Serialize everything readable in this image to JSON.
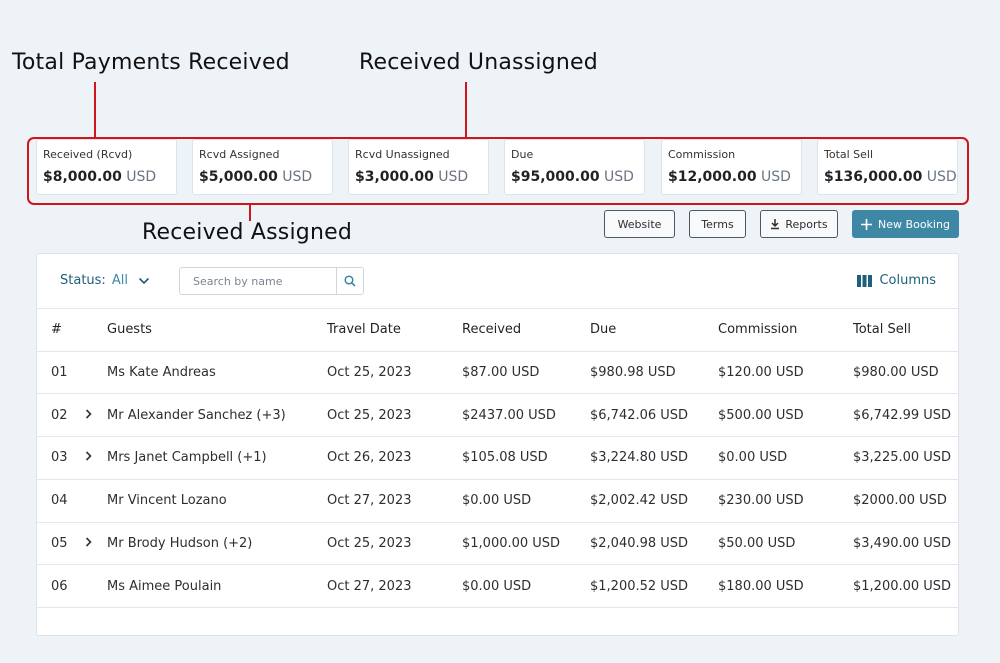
{
  "annotations": {
    "total_payments": "Total Payments Received",
    "received_unassigned": "Received Unassigned",
    "received_assigned": "Received Assigned"
  },
  "summary_cards": [
    {
      "label": "Received (Rcvd)",
      "amount": "$8,000.00",
      "currency": "USD"
    },
    {
      "label": "Rcvd Assigned",
      "amount": "$5,000.00",
      "currency": "USD"
    },
    {
      "label": "Rcvd Unassigned",
      "amount": "$3,000.00",
      "currency": "USD"
    },
    {
      "label": "Due",
      "amount": "$95,000.00",
      "currency": "USD"
    },
    {
      "label": "Commission",
      "amount": "$12,000.00",
      "currency": "USD"
    },
    {
      "label": "Total Sell",
      "amount": "$136,000.00",
      "currency": "USD"
    }
  ],
  "toolbar": {
    "website": "Website",
    "terms": "Terms",
    "reports": "Reports",
    "new_booking": "New Booking"
  },
  "filter": {
    "status_label": "Status:",
    "status_value": "All",
    "search_placeholder": "Search by name",
    "columns": "Columns"
  },
  "table": {
    "headers": [
      "#",
      "Guests",
      "Travel Date",
      "Received",
      "Due",
      "Commission",
      "Total Sell"
    ],
    "rows": [
      {
        "num": "01",
        "expandable": false,
        "guest": "Ms Kate Andreas",
        "date": "Oct 25, 2023",
        "received": "$87.00 USD",
        "due": "$980.98 USD",
        "commission": "$120.00 USD",
        "total": "$980.00 USD"
      },
      {
        "num": "02",
        "expandable": true,
        "guest": "Mr Alexander Sanchez (+3)",
        "date": "Oct 25, 2023",
        "received": "$2437.00 USD",
        "due": "$6,742.06 USD",
        "commission": "$500.00 USD",
        "total": "$6,742.99 USD"
      },
      {
        "num": "03",
        "expandable": true,
        "guest": "Mrs Janet Campbell (+1)",
        "date": "Oct 26, 2023",
        "received": "$105.08 USD",
        "due": "$3,224.80 USD",
        "commission": "$0.00 USD",
        "total": "$3,225.00 USD"
      },
      {
        "num": "04",
        "expandable": false,
        "guest": "Mr Vincent Lozano",
        "date": "Oct 27, 2023",
        "received": "$0.00 USD",
        "due": "$2,002.42 USD",
        "commission": "$230.00 USD",
        "total": "$2000.00 USD"
      },
      {
        "num": "05",
        "expandable": true,
        "guest": "Mr Brody Hudson (+2)",
        "date": "Oct 25, 2023",
        "received": "$1,000.00 USD",
        "due": "$2,040.98 USD",
        "commission": "$50.00 USD",
        "total": "$3,490.00 USD"
      },
      {
        "num": "06",
        "expandable": false,
        "guest": "Ms Aimee Poulain",
        "date": "Oct 27, 2023",
        "received": "$0.00 USD",
        "due": "$1,200.52 USD",
        "commission": "$180.00 USD",
        "total": "$1,200.00 USD"
      }
    ]
  },
  "colors": {
    "annotation_red": "#d0151d",
    "accent": "#3e87a5",
    "link": "#1d5f7c"
  },
  "icons": {
    "search": "search-icon",
    "download": "download-icon",
    "plus": "plus-icon",
    "columns": "columns-icon",
    "chevron": "chevron-right-icon"
  }
}
